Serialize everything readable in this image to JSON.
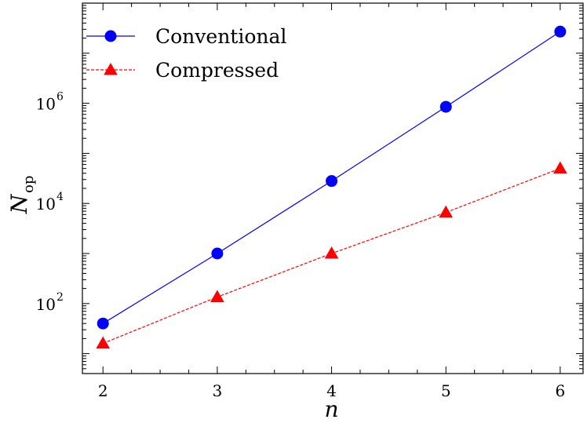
{
  "chart_data": {
    "type": "line",
    "x_ticks": [
      2,
      3,
      4,
      5,
      6
    ],
    "y_ticks": [
      {
        "value": 100,
        "base": "10",
        "exp": "2"
      },
      {
        "value": 10000,
        "base": "10",
        "exp": "4"
      },
      {
        "value": 1000000,
        "base": "10",
        "exp": "6"
      }
    ],
    "xlim": [
      1.82,
      6.2
    ],
    "ylim": [
      4,
      100000000
    ],
    "yscale": "log",
    "xlabel": "n",
    "ylabel": {
      "main": "N",
      "sub": "op"
    },
    "legend_position": "top-left",
    "series": [
      {
        "name": "Conventional",
        "color": "#0000ff",
        "marker": "circle",
        "line_style": "solid",
        "x": [
          2,
          3,
          4,
          5,
          6
        ],
        "y": [
          40,
          1000,
          28000,
          850000,
          27000000
        ]
      },
      {
        "name": "Compressed",
        "color": "#ff0000",
        "marker": "triangle",
        "line_style": "dashed",
        "x": [
          2,
          3,
          4,
          5,
          6
        ],
        "y": [
          16,
          135,
          1000,
          6600,
          50000
        ]
      }
    ]
  }
}
